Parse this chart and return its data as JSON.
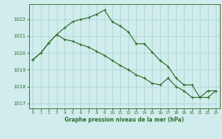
{
  "title": "Graphe pression niveau de la mer (hPa)",
  "background_color": "#d0ecec",
  "grid_color": "#a8cece",
  "line_color": "#2d6e2d",
  "xlim": [
    -0.5,
    23.5
  ],
  "ylim": [
    1016.7,
    1022.9
  ],
  "yticks": [
    1017,
    1018,
    1019,
    1020,
    1021,
    1022
  ],
  "xticks": [
    0,
    1,
    2,
    3,
    4,
    5,
    6,
    7,
    8,
    9,
    10,
    11,
    12,
    13,
    14,
    15,
    16,
    17,
    18,
    19,
    20,
    21,
    22,
    23
  ],
  "series1_x": [
    0,
    1,
    2,
    3,
    4,
    5,
    6,
    7,
    8,
    9,
    10,
    11,
    12,
    13,
    14,
    15,
    16,
    17,
    18,
    19,
    20,
    21,
    22,
    23
  ],
  "series1_y": [
    1019.6,
    1020.0,
    1020.6,
    1021.1,
    1021.5,
    1021.85,
    1022.0,
    1022.1,
    1022.3,
    1022.55,
    1021.85,
    1021.6,
    1021.25,
    1020.55,
    1020.55,
    1020.05,
    1019.55,
    1019.2,
    1018.5,
    1018.1,
    1018.1,
    1017.35,
    1017.35,
    1017.75
  ],
  "series2_x": [
    0,
    1,
    2,
    3,
    4,
    5,
    6,
    7,
    8,
    9,
    10,
    11,
    12,
    13,
    14,
    15,
    16,
    17,
    18,
    19,
    20,
    21,
    22,
    23
  ],
  "series2_y": [
    1019.6,
    1020.0,
    1020.6,
    1021.1,
    1020.8,
    1020.7,
    1020.5,
    1020.35,
    1020.1,
    1019.85,
    1019.55,
    1019.25,
    1019.0,
    1018.7,
    1018.5,
    1018.2,
    1018.1,
    1018.5,
    1018.0,
    1017.75,
    1017.35,
    1017.35,
    1017.75,
    1017.75
  ]
}
